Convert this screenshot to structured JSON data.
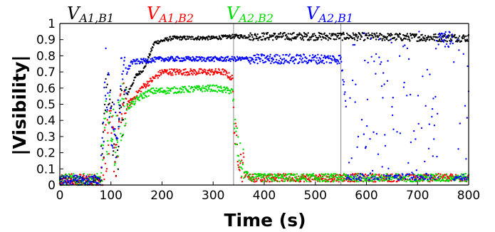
{
  "chart_data": {
    "type": "scatter",
    "xlabel": "Time (s)",
    "ylabel": "|Visibility|",
    "xlim": [
      0,
      800
    ],
    "ylim": [
      0,
      1
    ],
    "x_ticks": [
      0,
      100,
      200,
      300,
      400,
      500,
      600,
      700,
      800
    ],
    "y_ticks": [
      0,
      0.1,
      0.2,
      0.3,
      0.4,
      0.5,
      0.6,
      0.7,
      0.8,
      0.9,
      1
    ],
    "grid": false,
    "legend_position": "top",
    "vertical_markers": [
      340,
      550
    ],
    "series": [
      {
        "name_main": "V",
        "name_sub": "A1,B1",
        "color": "#000000",
        "pattern": [
          [
            0,
            0.03
          ],
          [
            80,
            0.03
          ],
          [
            90,
            0.55
          ],
          [
            100,
            0.45
          ],
          [
            110,
            0.15
          ],
          [
            120,
            0.45
          ],
          [
            130,
            0.55
          ],
          [
            150,
            0.68
          ],
          [
            165,
            0.72
          ],
          [
            185,
            0.88
          ],
          [
            220,
            0.91
          ],
          [
            300,
            0.91
          ],
          [
            340,
            0.92
          ],
          [
            550,
            0.92
          ],
          [
            800,
            0.91
          ]
        ],
        "noise": 0.012
      },
      {
        "name_main": "V",
        "name_sub": "A1,B2",
        "color": "#ff0000",
        "pattern": [
          [
            0,
            0.03
          ],
          [
            80,
            0.03
          ],
          [
            90,
            0.25
          ],
          [
            100,
            0.3
          ],
          [
            110,
            0.2
          ],
          [
            120,
            0.45
          ],
          [
            140,
            0.52
          ],
          [
            160,
            0.6
          ],
          [
            180,
            0.65
          ],
          [
            200,
            0.7
          ],
          [
            320,
            0.7
          ],
          [
            338,
            0.66
          ],
          [
            342,
            0.28
          ],
          [
            355,
            0.08
          ],
          [
            380,
            0.04
          ],
          [
            800,
            0.04
          ]
        ],
        "noise": 0.02
      },
      {
        "name_main": "V",
        "name_sub": "A2,B2",
        "color": "#00dd00",
        "pattern": [
          [
            0,
            0.03
          ],
          [
            80,
            0.03
          ],
          [
            90,
            0.35
          ],
          [
            100,
            0.4
          ],
          [
            110,
            0.25
          ],
          [
            120,
            0.45
          ],
          [
            140,
            0.5
          ],
          [
            160,
            0.55
          ],
          [
            180,
            0.58
          ],
          [
            300,
            0.6
          ],
          [
            338,
            0.58
          ],
          [
            342,
            0.3
          ],
          [
            355,
            0.09
          ],
          [
            380,
            0.04
          ],
          [
            800,
            0.04
          ]
        ],
        "noise": 0.02
      },
      {
        "name_main": "V",
        "name_sub": "A2,B1",
        "color": "#0000ff",
        "pattern": [
          [
            0,
            0.03
          ],
          [
            80,
            0.03
          ],
          [
            90,
            0.7
          ],
          [
            100,
            0.4
          ],
          [
            110,
            0.3
          ],
          [
            120,
            0.62
          ],
          [
            140,
            0.76
          ],
          [
            200,
            0.78
          ],
          [
            340,
            0.78
          ],
          [
            550,
            0.78
          ],
          [
            560,
            0.5
          ],
          [
            800,
            0.5
          ]
        ],
        "noise": 0.015
      }
    ]
  }
}
